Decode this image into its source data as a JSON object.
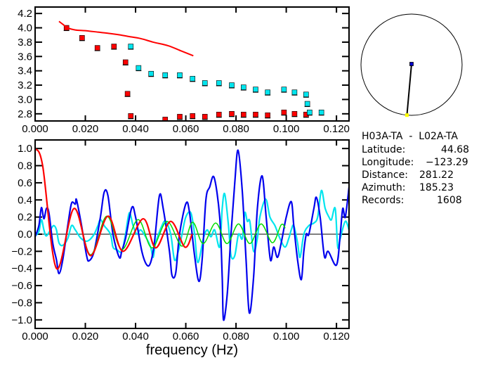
{
  "chart_data": [
    {
      "type": "scatter",
      "title": "",
      "xlabel": "",
      "ylabel": "",
      "xlim": [
        0,
        0.125
      ],
      "ylim": [
        2.7,
        4.29
      ],
      "x_ticks": [
        "0.000",
        "0.020",
        "0.040",
        "0.060",
        "0.080",
        "0.100",
        "0.120"
      ],
      "x_tick_values": [
        0,
        0.02,
        0.04,
        0.06,
        0.08,
        0.1,
        0.12
      ],
      "y_ticks": [
        "2.8",
        "3.0",
        "3.2",
        "3.4",
        "3.6",
        "3.8",
        "4.0",
        "4.2"
      ],
      "y_tick_values": [
        2.8,
        3.0,
        3.2,
        3.4,
        3.6,
        3.8,
        4.0,
        4.2
      ],
      "series": [
        {
          "name": "red-points",
          "color": "#ff0000",
          "kind": "markers",
          "x": [
            0.0125,
            0.0187,
            0.0248,
            0.0314,
            0.036,
            0.0368,
            0.0381,
            0.0518,
            0.0576,
            0.0627,
            0.0676,
            0.0732,
            0.0783,
            0.083,
            0.0878,
            0.0926,
            0.0991,
            0.1033,
            0.1079
          ],
          "y": [
            4.0,
            3.86,
            3.72,
            3.74,
            3.52,
            3.08,
            2.77,
            2.72,
            2.76,
            2.77,
            2.76,
            2.79,
            2.8,
            2.79,
            2.79,
            2.78,
            2.82,
            2.8,
            2.79
          ]
        },
        {
          "name": "cyan-points",
          "color": "#00e5ee",
          "kind": "markers",
          "x": [
            0.0381,
            0.0412,
            0.0462,
            0.0518,
            0.0576,
            0.0627,
            0.0676,
            0.0732,
            0.0783,
            0.083,
            0.0878,
            0.0926,
            0.0991,
            0.1033,
            0.1079,
            0.1084,
            0.1093,
            0.114
          ],
          "y": [
            3.74,
            3.44,
            3.36,
            3.34,
            3.34,
            3.29,
            3.23,
            3.23,
            3.2,
            3.17,
            3.14,
            3.1,
            3.14,
            3.1,
            3.07,
            2.94,
            2.82,
            2.82
          ]
        },
        {
          "name": "red-curve",
          "color": "#ff0000",
          "kind": "line",
          "x": [
            0.0095,
            0.011,
            0.013,
            0.016,
            0.02,
            0.025,
            0.03,
            0.034,
            0.037,
            0.042,
            0.047,
            0.053,
            0.058,
            0.063
          ],
          "y": [
            4.09,
            4.05,
            4.0,
            3.97,
            3.96,
            3.94,
            3.92,
            3.9,
            3.88,
            3.85,
            3.8,
            3.75,
            3.68,
            3.61
          ]
        }
      ]
    },
    {
      "type": "line",
      "title": "",
      "xlabel": "frequency (Hz)",
      "ylabel": "",
      "xlim": [
        0,
        0.125
      ],
      "ylim": [
        -1.1,
        1.1
      ],
      "x_ticks": [
        "0.000",
        "0.020",
        "0.040",
        "0.060",
        "0.080",
        "0.100",
        "0.120"
      ],
      "x_tick_values": [
        0,
        0.02,
        0.04,
        0.06,
        0.08,
        0.1,
        0.12
      ],
      "y_ticks": [
        "−1.0",
        "−0.8",
        "−0.6",
        "−0.4",
        "−0.2",
        "0.0",
        "0.2",
        "0.4",
        "0.6",
        "0.8",
        "1.0"
      ],
      "y_tick_values": [
        -1,
        -0.8,
        -0.6,
        -0.4,
        -0.2,
        0,
        0.2,
        0.4,
        0.6,
        0.8,
        1
      ],
      "zero_line": true,
      "series": [
        {
          "name": "cyan",
          "color": "#00e5ee",
          "x": [
            0,
            0.0015,
            0.0025,
            0.0035,
            0.0045,
            0.0065,
            0.0075,
            0.0085,
            0.0095,
            0.011,
            0.013,
            0.0145,
            0.016,
            0.018,
            0.02,
            0.0215,
            0.0235,
            0.025,
            0.026,
            0.0275,
            0.03,
            0.031,
            0.0325,
            0.0345,
            0.036,
            0.0375,
            0.039,
            0.0405,
            0.042,
            0.044,
            0.046,
            0.047,
            0.048,
            0.0505,
            0.052,
            0.054,
            0.0555,
            0.057,
            0.0585,
            0.06,
            0.062,
            0.0635,
            0.0648,
            0.067,
            0.0685,
            0.07,
            0.0715,
            0.0735,
            0.0745,
            0.0755,
            0.077,
            0.078,
            0.0795,
            0.081,
            0.0825,
            0.0835,
            0.0845,
            0.0855,
            0.087,
            0.0885,
            0.0895,
            0.0918,
            0.0935,
            0.0955,
            0.0975,
            0.0995,
            0.101,
            0.102,
            0.103,
            0.1045,
            0.1055,
            0.107,
            0.109,
            0.111,
            0.1125,
            0.114,
            0.1155,
            0.117,
            0.118,
            0.1195,
            0.1205,
            0.1215,
            0.1235,
            0.125
          ],
          "y": [
            -0.02,
            0.03,
            0.17,
            0.05,
            -0.02,
            0.07,
            0.1,
            0.05,
            -0.1,
            -0.13,
            -0.05,
            0.1,
            0.05,
            -0.04,
            -0.08,
            -0.07,
            0.0,
            0.1,
            0.17,
            0.1,
            0.0,
            -0.15,
            -0.18,
            -0.2,
            0.0,
            0.25,
            0.1,
            0.0,
            0.05,
            -0.03,
            -0.15,
            -0.27,
            -0.1,
            0.1,
            0.15,
            0.0,
            -0.3,
            -0.2,
            0.0,
            0.2,
            0.25,
            0.0,
            -0.33,
            -0.05,
            0.05,
            -0.03,
            0.05,
            -0.15,
            0.3,
            0.47,
            0.1,
            -0.25,
            -0.25,
            0.0,
            -0.05,
            0.25,
            0.15,
            0.15,
            -0.2,
            -0.05,
            0.2,
            0.41,
            0.2,
            0.1,
            -0.05,
            -0.15,
            -0.05,
            0.05,
            0.1,
            -0.1,
            -0.27,
            0.0,
            0.1,
            0.13,
            0.2,
            0.51,
            0.3,
            0.2,
            0.17,
            0.3,
            -0.15,
            -0.05,
            0.15,
            0.05
          ]
        },
        {
          "name": "blue",
          "color": "#0000ee",
          "x": [
            0,
            0.0015,
            0.0025,
            0.0035,
            0.0045,
            0.0055,
            0.007,
            0.0085,
            0.0095,
            0.011,
            0.013,
            0.0145,
            0.016,
            0.0165,
            0.0185,
            0.0205,
            0.0215,
            0.0235,
            0.026,
            0.0275,
            0.029,
            0.031,
            0.0335,
            0.0345,
            0.036,
            0.0385,
            0.04,
            0.0425,
            0.0445,
            0.046,
            0.0475,
            0.0495,
            0.051,
            0.0535,
            0.0545,
            0.056,
            0.0575,
            0.0601,
            0.0615,
            0.0635,
            0.0652,
            0.0665,
            0.068,
            0.0695,
            0.0713,
            0.0735,
            0.0745,
            0.075,
            0.0765,
            0.078,
            0.0795,
            0.0808,
            0.0825,
            0.084,
            0.0853,
            0.087,
            0.0885,
            0.0904,
            0.092,
            0.0937,
            0.095,
            0.0965,
            0.098,
            0.1,
            0.102,
            0.103,
            0.1045,
            0.106,
            0.107,
            0.108,
            0.109,
            0.111,
            0.112,
            0.1135,
            0.1152,
            0.1167,
            0.12,
            0.1215,
            0.1225,
            0.1235,
            0.125
          ],
          "y": [
            -0.03,
            0.1,
            0.31,
            0.18,
            0.3,
            0.25,
            -0.1,
            -0.3,
            -0.46,
            -0.3,
            0.1,
            0.36,
            0.35,
            0.4,
            0.1,
            -0.25,
            -0.31,
            -0.2,
            0.2,
            0.49,
            0.45,
            0.0,
            -0.27,
            -0.2,
            -0.05,
            0.31,
            0.2,
            -0.2,
            -0.36,
            -0.33,
            -0.1,
            0.45,
            0.3,
            -0.2,
            -0.48,
            -0.45,
            0.0,
            0.36,
            0.25,
            -0.25,
            -0.55,
            -0.3,
            0.4,
            0.55,
            0.66,
            0.2,
            -0.5,
            -1.0,
            -0.7,
            0.0,
            0.6,
            0.98,
            0.5,
            -0.3,
            -0.92,
            -0.5,
            0.3,
            0.68,
            0.2,
            -0.3,
            -0.15,
            -0.27,
            -0.1,
            0.2,
            0.38,
            0.1,
            -0.3,
            -0.53,
            -0.2,
            0.0,
            0.0,
            0.3,
            0.43,
            0.2,
            -0.26,
            -0.2,
            -0.36,
            0.0,
            0.3,
            0.2,
            0.55
          ]
        },
        {
          "name": "green",
          "color": "#00dd00",
          "x": [
            0,
            0.003,
            0.0085,
            0.0155,
            0.022,
            0.0285,
            0.0345,
            0.041,
            0.0465,
            0.0525,
            0.0585,
            0.0627,
            0.0669,
            0.0719,
            0.0764,
            0.081,
            0.0855,
            0.09,
            0.0945,
            0.098,
            0.0996
          ],
          "y": [
            1.0,
            0.8,
            -0.4,
            0.3,
            -0.24,
            0.21,
            -0.18,
            0.17,
            -0.16,
            0.15,
            -0.14,
            0.14,
            -0.11,
            0.13,
            -0.11,
            0.12,
            -0.11,
            0.12,
            -0.1,
            0.11,
            0.07
          ]
        },
        {
          "name": "red",
          "color": "#ff0000",
          "x": [
            0,
            0.003,
            0.0085,
            0.0155,
            0.022,
            0.029,
            0.035,
            0.043,
            0.048,
            0.054,
            0.0596,
            0.0625
          ],
          "y": [
            1.0,
            0.8,
            -0.4,
            0.3,
            -0.25,
            0.21,
            -0.2,
            0.18,
            -0.16,
            0.15,
            -0.15,
            0.0
          ]
        }
      ]
    }
  ],
  "inset_map": {
    "circle_color": "#000000",
    "station_a_color": "#0000cc",
    "station_b_color": "#ffff00",
    "azimuth_deg": 185.23
  },
  "info": {
    "pair": "H03A-TA  -  L02A-TA",
    "latitude_label": "Latitude:",
    "latitude": "44.68",
    "longitude_label": "Longitude:",
    "longitude": "−123.29",
    "distance_label": "Distance:",
    "distance": "281.22",
    "azimuth_label": "Azimuth:",
    "azimuth": "185.23",
    "records_label": "Records:",
    "records": "1608"
  }
}
